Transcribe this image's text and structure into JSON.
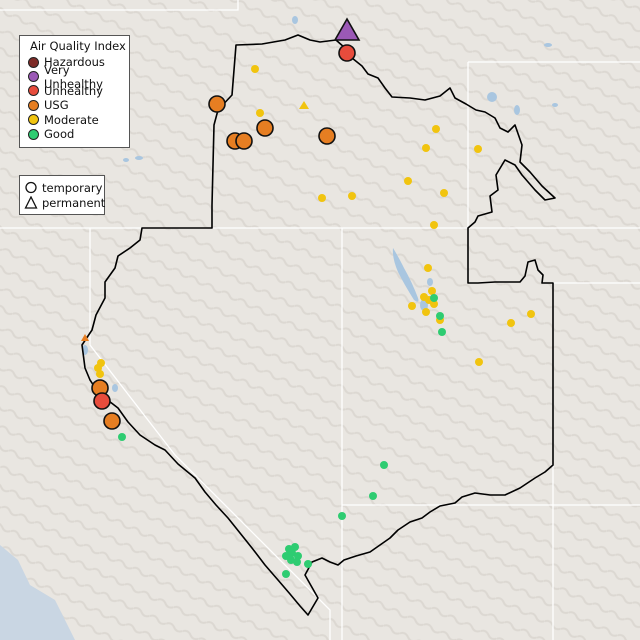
{
  "legend_aqi": {
    "title": "Air Quality Index",
    "categories": [
      {
        "label": "Hazardous",
        "color": "#7e2b27"
      },
      {
        "label": "Very Unhealthy",
        "color": "#9b59b6"
      },
      {
        "label": "Unhealthy",
        "color": "#e74c3c"
      },
      {
        "label": "USG",
        "color": "#e67e22"
      },
      {
        "label": "Moderate",
        "color": "#f1c40f"
      },
      {
        "label": "Good",
        "color": "#2ecc71"
      }
    ]
  },
  "legend_type": {
    "temporary": "temporary",
    "permanent": "permanent"
  },
  "map_style": {
    "land_color": "#e9e6e1",
    "ocean_color": "#c9d6e3",
    "lake_color": "#a9c6e0",
    "boundary_color": "#000000",
    "state_line_color": "#ffffff"
  }
}
